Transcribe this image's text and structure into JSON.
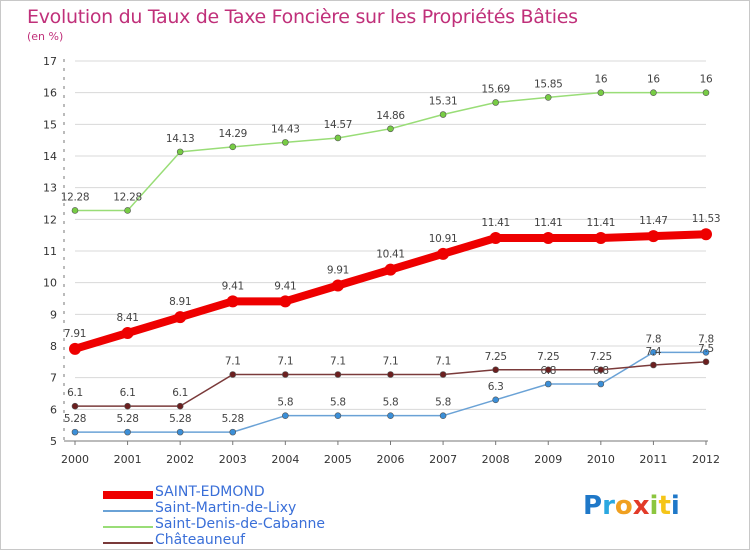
{
  "title": "Evolution du Taux de Taxe Foncière sur les Propriétés Bâties",
  "subtitle": "(en %)",
  "logo": {
    "text": "Proxiti",
    "letters": [
      "P",
      "r",
      "o",
      "x",
      "i",
      "t",
      "i"
    ],
    "letter_colors": [
      "#1f78c8",
      "#2aa7e0",
      "#f0a020",
      "#e23a28",
      "#8cc63f",
      "#f5c518",
      "#1f78c8"
    ]
  },
  "chart_data": {
    "type": "line",
    "x": [
      "2000",
      "2001",
      "2002",
      "2003",
      "2004",
      "2005",
      "2006",
      "2007",
      "2008",
      "2009",
      "2010",
      "2011",
      "2012"
    ],
    "yticks": [
      "5",
      "6",
      "7",
      "8",
      "9",
      "10",
      "11",
      "12",
      "13",
      "14",
      "15",
      "16",
      "17"
    ],
    "ylim": [
      5,
      17
    ],
    "title": "Evolution du Taux de Taxe Foncière sur les Propriétés Bâties",
    "ylabel": "(en %)",
    "legend_position": "bottom-left",
    "series": [
      {
        "name": "SAINT-EDMOND",
        "color": "#ee0000",
        "marker_color": "#ee0000",
        "thick": true,
        "values": [
          7.91,
          8.41,
          8.91,
          9.41,
          9.41,
          9.91,
          10.41,
          10.91,
          11.41,
          11.41,
          11.41,
          11.47,
          11.53
        ],
        "labels": [
          "7.91",
          "8.41",
          "8.91",
          "9.41",
          "9.41",
          "9.91",
          "10.41",
          "10.91",
          "11.41",
          "11.41",
          "11.41",
          "11.47",
          "11.53"
        ]
      },
      {
        "name": "Saint-Martin-de-Lixy",
        "color": "#6aa2d6",
        "marker_color": "#3b8fd8",
        "thick": false,
        "values": [
          5.28,
          5.28,
          5.28,
          5.28,
          5.8,
          5.8,
          5.8,
          5.8,
          6.3,
          6.8,
          6.8,
          7.8,
          7.8
        ],
        "labels": [
          "5.28",
          "5.28",
          "5.28",
          "5.28",
          "5.8",
          "5.8",
          "5.8",
          "5.8",
          "6.3",
          "6.8",
          "6.8",
          "7.8",
          "7.8"
        ]
      },
      {
        "name": "Saint-Denis-de-Cabanne",
        "color": "#99dd77",
        "marker_color": "#77cc44",
        "thick": false,
        "values": [
          12.28,
          12.28,
          14.13,
          14.29,
          14.43,
          14.57,
          14.86,
          15.31,
          15.69,
          15.85,
          16,
          16,
          16
        ],
        "labels": [
          "12.28",
          "12.28",
          "14.13",
          "14.29",
          "14.43",
          "14.57",
          "14.86",
          "15.31",
          "15.69",
          "15.85",
          "16",
          "16",
          "16"
        ]
      },
      {
        "name": "Châteauneuf",
        "color": "#7a3a3a",
        "marker_color": "#6b1f1f",
        "thick": false,
        "values": [
          6.1,
          6.1,
          6.1,
          7.1,
          7.1,
          7.1,
          7.1,
          7.1,
          7.25,
          7.25,
          7.25,
          7.4,
          7.5
        ],
        "labels": [
          "6.1",
          "6.1",
          "6.1",
          "7.1",
          "7.1",
          "7.1",
          "7.1",
          "7.1",
          "7.25",
          "7.25",
          "7.25",
          "7.4",
          "7.5"
        ]
      }
    ]
  }
}
